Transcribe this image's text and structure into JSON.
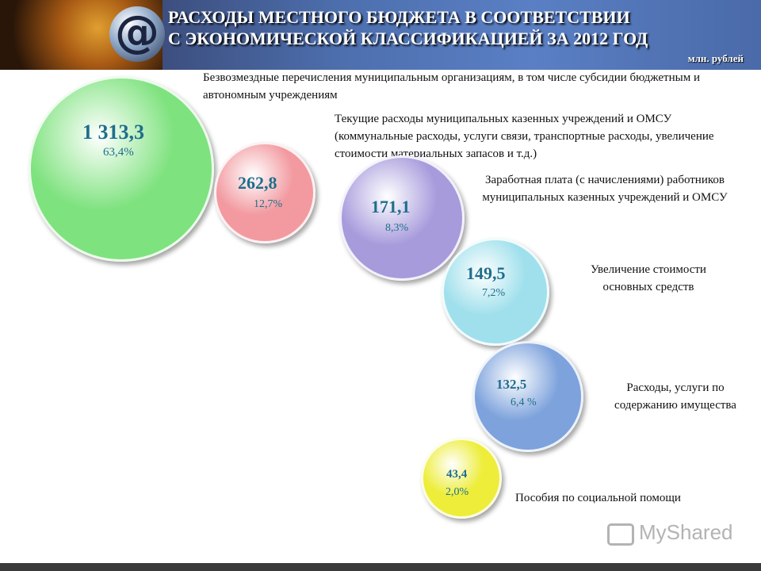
{
  "header": {
    "title_line1": "РАСХОДЫ МЕСТНОГО БЮДЖЕТА В СООТВЕТСТВИИ",
    "title_line2": "С ЭКОНОМИЧЕСКОЙ КЛАССИФИКАЦИЕЙ ЗА 2012 ГОД",
    "unit": "млн. рублей"
  },
  "watermark": "MyShared",
  "chart_data": {
    "type": "bubble",
    "unit": "млн. рублей",
    "items": [
      {
        "label": "Безвозмездные перечисления муниципальным организациям, в том числе субсидии бюджетным и автономным учреждениям",
        "value_text": "1 313,3",
        "value": 1313.3,
        "pct_text": "63,4%",
        "pct": 63.4,
        "color": "#7ee27e"
      },
      {
        "label": "Текущие расходы муниципальных казенных учреждений и ОМСУ (коммунальные расходы, услуги связи, транспортные расходы, увеличение стоимости материальных запасов и т.д.)",
        "value_text": "262,8",
        "value": 262.8,
        "pct_text": "12,7%",
        "pct": 12.7,
        "color": "#f29aa0"
      },
      {
        "label": "Заработная плата (с начислениями) работников муниципальных казенных учреждений и ОМСУ",
        "value_text": "171,1",
        "value": 171.1,
        "pct_text": "8,3%",
        "pct": 8.3,
        "color": "#a79bdc"
      },
      {
        "label": "Увеличение стоимости основных средств",
        "value_text": "149,5",
        "value": 149.5,
        "pct_text": "7,2%",
        "pct": 7.2,
        "color": "#9fe0ec"
      },
      {
        "label": "Расходы, услуги по содержанию имущества",
        "value_text": "132,5",
        "value": 132.5,
        "pct_text": "6,4 %",
        "pct": 6.4,
        "color": "#7da2dc"
      },
      {
        "label": "Пособия по социальной помощи",
        "value_text": "43,4",
        "value": 43.4,
        "pct_text": "2,0%",
        "pct": 2.0,
        "color": "#eded3a"
      }
    ]
  }
}
